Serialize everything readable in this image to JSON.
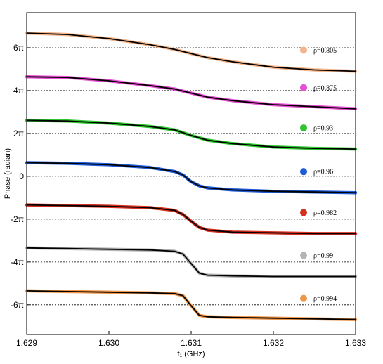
{
  "chart_data": {
    "type": "line",
    "title": "",
    "xlabel": "f₁ (GHz)",
    "ylabel": "Phase (radian)",
    "xlim": [
      1.629,
      1.633
    ],
    "ylim": [
      -23.2,
      24.0
    ],
    "x_ticks": [
      {
        "value": 1.629,
        "label": "1.629"
      },
      {
        "value": 1.63,
        "label": "1.630"
      },
      {
        "value": 1.631,
        "label": "1.631"
      },
      {
        "value": 1.632,
        "label": "1.632"
      },
      {
        "value": 1.633,
        "label": "1.633"
      }
    ],
    "y_ticks": [
      {
        "value": 18.85,
        "label": "6π"
      },
      {
        "value": 12.57,
        "label": "4π"
      },
      {
        "value": 6.28,
        "label": "2π"
      },
      {
        "value": 0,
        "label": "0"
      },
      {
        "value": -6.28,
        "label": "-2π"
      },
      {
        "value": -12.57,
        "label": "-4π"
      },
      {
        "value": -18.85,
        "label": "-6π"
      }
    ],
    "grid": "dotted horizontal lines at multiples of 2π",
    "legend_position": "right, one entry beside each curve",
    "fit_color": "#000000",
    "series": [
      {
        "name": "ρ=0.805",
        "color": "#f2b58c",
        "x": [
          1.629,
          1.6295,
          1.63,
          1.6305,
          1.6308,
          1.631,
          1.6312,
          1.6315,
          1.632,
          1.6325,
          1.633
        ],
        "y": [
          21.0,
          20.8,
          20.2,
          19.3,
          18.6,
          18.0,
          17.4,
          16.8,
          16.0,
          15.6,
          15.4
        ]
      },
      {
        "name": "ρ=0.875",
        "color": "#e64fd1",
        "x": [
          1.629,
          1.6295,
          1.63,
          1.6305,
          1.6308,
          1.631,
          1.6312,
          1.6315,
          1.632,
          1.6325,
          1.633
        ],
        "y": [
          14.6,
          14.5,
          14.0,
          13.3,
          12.8,
          12.2,
          11.6,
          11.1,
          10.5,
          10.2,
          9.9
        ]
      },
      {
        "name": "ρ=0.93",
        "color": "#2ec52e",
        "x": [
          1.629,
          1.6295,
          1.63,
          1.6305,
          1.6308,
          1.631,
          1.6312,
          1.6315,
          1.632,
          1.6325,
          1.633
        ],
        "y": [
          8.2,
          8.1,
          7.8,
          7.3,
          6.8,
          6.0,
          5.3,
          4.8,
          4.3,
          4.1,
          4.0
        ]
      },
      {
        "name": "ρ=0.96",
        "color": "#1e5bd8",
        "x": [
          1.629,
          1.6295,
          1.63,
          1.6305,
          1.6308,
          1.6309,
          1.631,
          1.6311,
          1.6312,
          1.6315,
          1.632,
          1.6325,
          1.633
        ],
        "y": [
          2.0,
          1.9,
          1.7,
          1.3,
          0.7,
          0.2,
          -0.8,
          -1.4,
          -1.7,
          -2.0,
          -2.2,
          -2.3,
          -2.4
        ]
      },
      {
        "name": "ρ=0.982",
        "color": "#d63020",
        "x": [
          1.629,
          1.6295,
          1.63,
          1.6305,
          1.6308,
          1.6309,
          1.631,
          1.6311,
          1.6312,
          1.6315,
          1.632,
          1.6325,
          1.633
        ],
        "y": [
          -4.2,
          -4.3,
          -4.4,
          -4.6,
          -5.0,
          -5.6,
          -6.6,
          -7.5,
          -7.9,
          -8.2,
          -8.3,
          -8.4,
          -8.4
        ]
      },
      {
        "name": "ρ=0.99",
        "color": "#b4b4b4",
        "x": [
          1.629,
          1.6295,
          1.63,
          1.6305,
          1.6308,
          1.6309,
          1.631,
          1.6311,
          1.6312,
          1.6315,
          1.632,
          1.6325,
          1.633
        ],
        "y": [
          -10.5,
          -10.6,
          -10.7,
          -10.8,
          -11.0,
          -11.4,
          -12.8,
          -14.2,
          -14.5,
          -14.6,
          -14.7,
          -14.7,
          -14.7
        ]
      },
      {
        "name": "ρ=0.994",
        "color": "#f0964a",
        "x": [
          1.629,
          1.6295,
          1.63,
          1.6305,
          1.6308,
          1.6309,
          1.631,
          1.6311,
          1.6312,
          1.6315,
          1.632,
          1.6325,
          1.633
        ],
        "y": [
          -16.8,
          -16.9,
          -17.0,
          -17.1,
          -17.2,
          -17.5,
          -19.0,
          -20.4,
          -20.6,
          -20.7,
          -20.8,
          -20.9,
          -21.0
        ]
      }
    ]
  }
}
